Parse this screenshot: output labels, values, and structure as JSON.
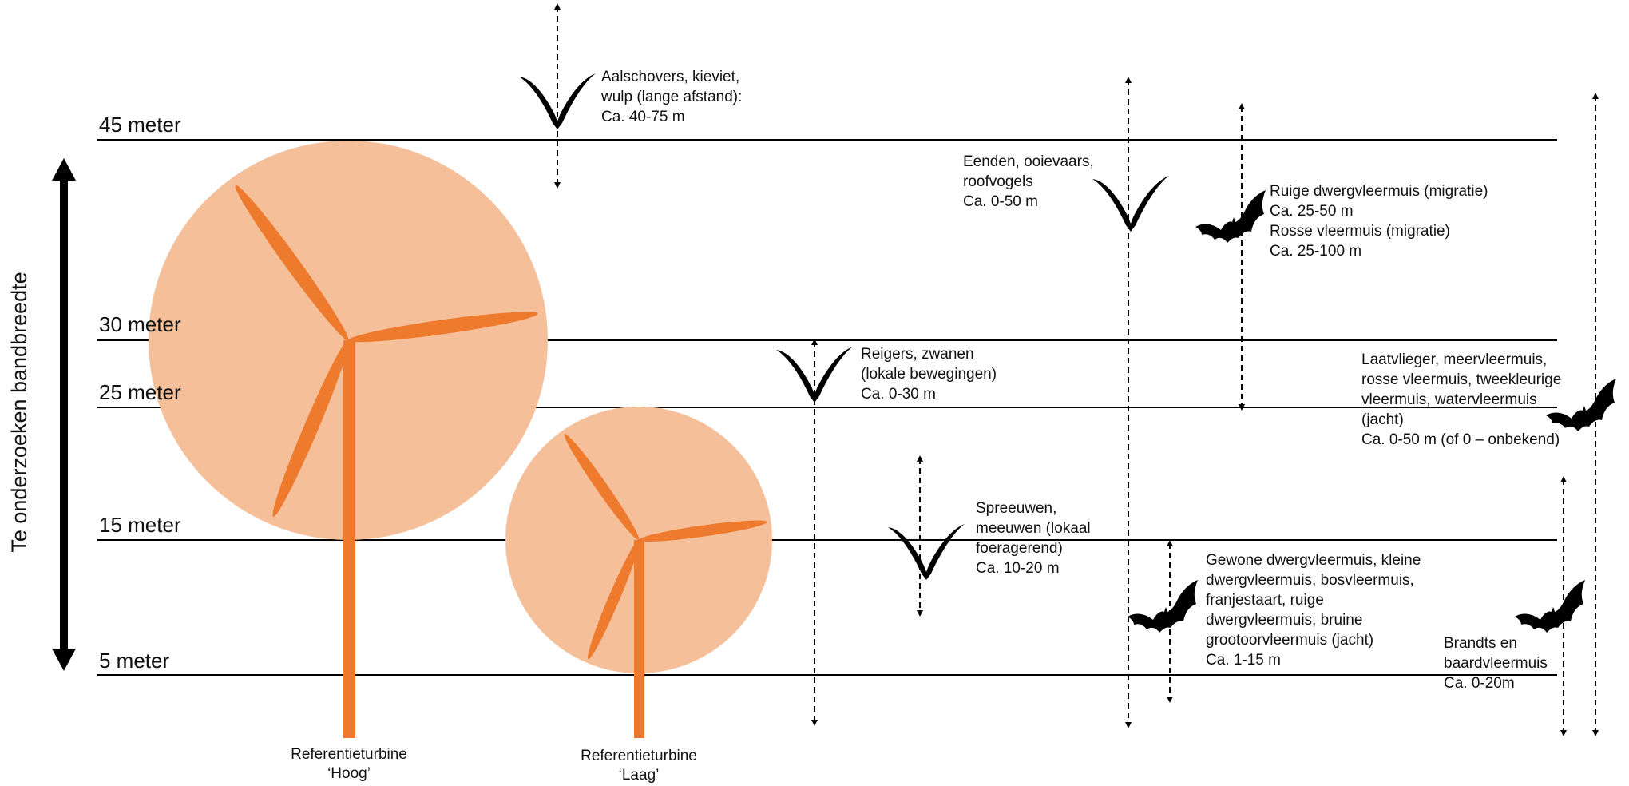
{
  "colors": {
    "rotor_disc": "#f4bf99",
    "blade": "#ee7a2e",
    "line": "#000000",
    "animal": "#000000"
  },
  "height_lines": [
    {
      "label": "45 meter"
    },
    {
      "label": "30 meter"
    },
    {
      "label": "25 meter"
    },
    {
      "label": "15 meter"
    },
    {
      "label": "5 meter"
    }
  ],
  "band": {
    "label": "Te onderzoeken bandbreedte"
  },
  "turbines": [
    {
      "line1": "Referentieturbine",
      "line2": "‘Hoog’"
    },
    {
      "line1": "Referentieturbine",
      "line2": "‘Laag’"
    }
  ],
  "species": [
    {
      "icon": "bird-icon",
      "lines": [
        "Aalschovers, kieviet,",
        "wulp (lange afstand):",
        "Ca. 40-75 m"
      ]
    },
    {
      "icon": "bird-icon",
      "lines": [
        "Eenden, ooievaars,",
        "roofvogels",
        "Ca. 0-50 m"
      ]
    },
    {
      "icon": "bat-icon",
      "lines": [
        "Ruige dwergvleermuis (migratie)",
        "Ca. 25-50 m",
        "Rosse vleermuis (migratie)",
        "Ca. 25-100 m"
      ]
    },
    {
      "icon": "bird-icon",
      "lines": [
        "Reigers, zwanen",
        "(lokale bewegingen)",
        "Ca. 0-30 m"
      ]
    },
    {
      "icon": "bat-icon",
      "lines": [
        "Laatvlieger, meervleermuis,",
        "rosse vleermuis, tweekleurige",
        "vleermuis, watervleermuis",
        "(jacht)",
        "Ca. 0-50 m (of 0 – onbekend)"
      ]
    },
    {
      "icon": "bird-icon",
      "lines": [
        "Spreeuwen,",
        "meeuwen (lokaal",
        "foeragerend)",
        "Ca. 10-20 m"
      ]
    },
    {
      "icon": "bat-icon",
      "lines": [
        "Gewone dwergvleermuis, kleine",
        "dwergvleermuis, bosvleermuis,",
        "franjestaart, ruige",
        "dwergvleermuis, bruine",
        "grootoorvleermuis (jacht)",
        "Ca. 1-15 m"
      ]
    },
    {
      "icon": "bat-icon",
      "lines": [
        "Brandts en",
        "baardvleermuis",
        "Ca. 0-20m"
      ]
    }
  ]
}
